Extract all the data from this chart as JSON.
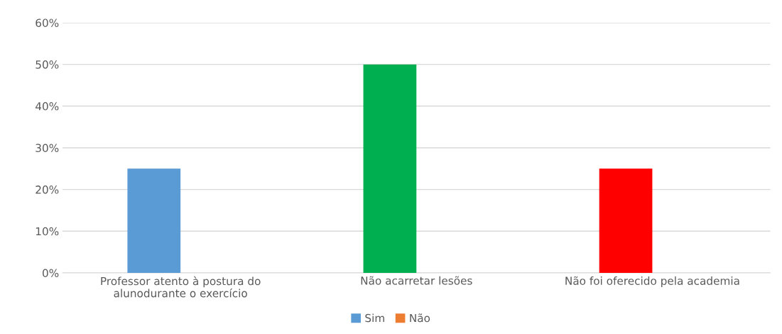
{
  "chart_data": {
    "type": "bar",
    "categories": [
      "Professor atento à postura do\nalunodurante o exercício",
      "Não acarretar lesões",
      "Não foi oferecido pela academia"
    ],
    "series": [
      {
        "name": "Sim",
        "color": "#5b9bd5",
        "colors": [
          "#5b9bd5",
          "#00b050",
          "#ff0000"
        ],
        "values": [
          25,
          50,
          25
        ]
      },
      {
        "name": "Não",
        "color": "#ed7d31",
        "values": [
          null,
          null,
          null
        ]
      }
    ],
    "ylim": [
      0,
      60
    ],
    "yticks": [
      {
        "value": 0,
        "label": "0%"
      },
      {
        "value": 10,
        "label": "10%"
      },
      {
        "value": 20,
        "label": "20%"
      },
      {
        "value": 30,
        "label": "30%"
      },
      {
        "value": 40,
        "label": "40%"
      },
      {
        "value": 50,
        "label": "50%"
      },
      {
        "value": 60,
        "label": "60%"
      }
    ],
    "grid": "y",
    "legend": "bottom"
  }
}
